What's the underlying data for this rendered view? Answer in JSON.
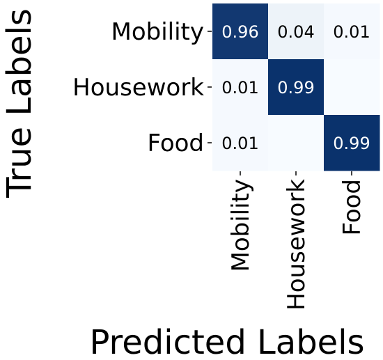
{
  "chart_data": {
    "type": "heatmap",
    "xlabel": "Predicted Labels",
    "ylabel": "True Labels",
    "x_categories": [
      "Mobility",
      "Housework",
      "Food"
    ],
    "y_categories": [
      "Mobility",
      "Housework",
      "Food"
    ],
    "values": [
      [
        0.96,
        0.04,
        0.01
      ],
      [
        0.01,
        0.99,
        0.0
      ],
      [
        0.01,
        0.0,
        0.99
      ]
    ],
    "cell_labels": [
      [
        "0.96",
        "0.04",
        "0.01"
      ],
      [
        "0.01",
        "0.99",
        ""
      ],
      [
        "0.01",
        "",
        "0.99"
      ]
    ],
    "value_range": [
      0,
      1
    ],
    "colormap": {
      "low": "#f7fbff",
      "high": "#08306b",
      "text_on_dark": "#ffffff",
      "text_on_light": "#000000"
    },
    "grid": false,
    "colorbar": false
  }
}
